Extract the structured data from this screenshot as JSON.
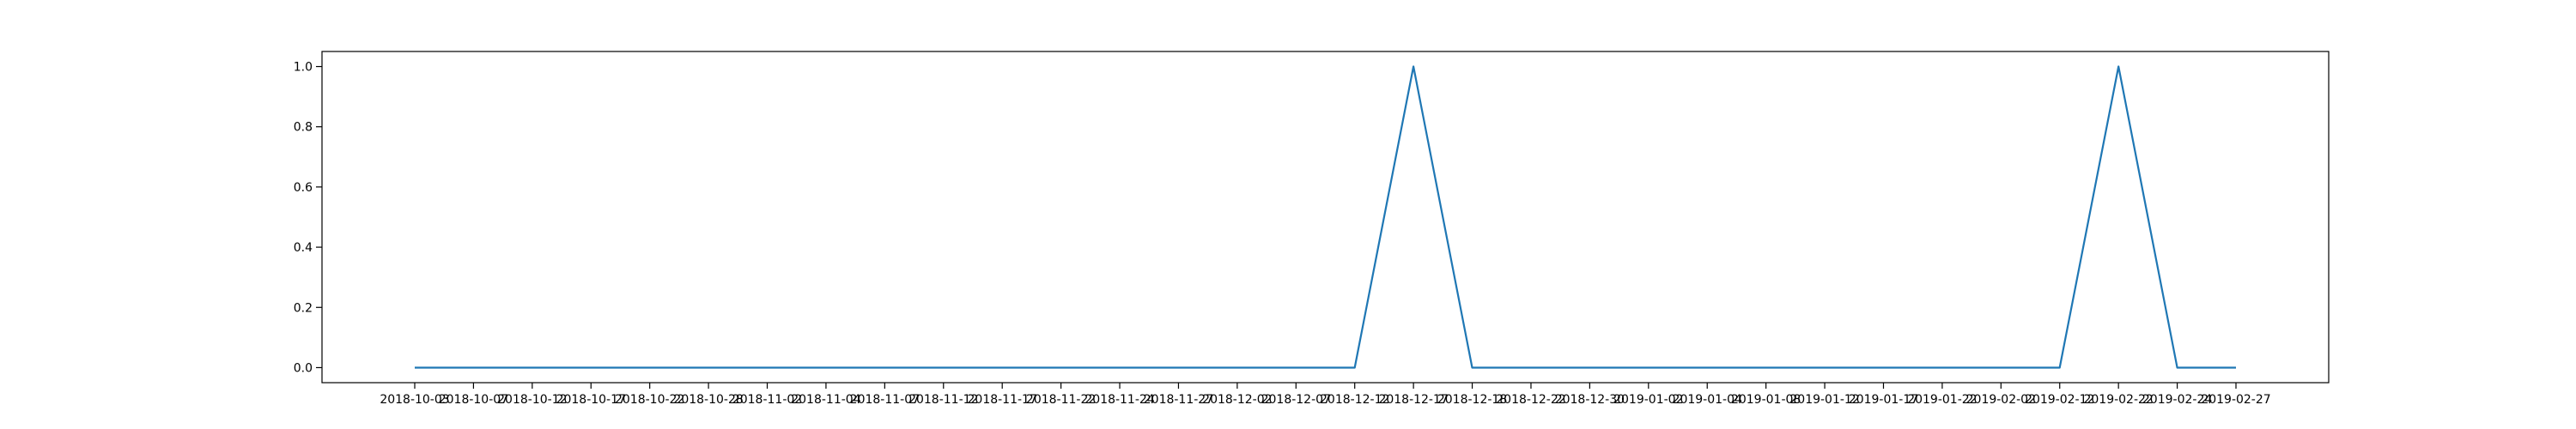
{
  "chart_data": {
    "type": "line",
    "title": "",
    "xlabel": "",
    "ylabel": "",
    "grid": false,
    "x": [
      "2018-10-03",
      "2018-10-07",
      "2018-10-12",
      "2018-10-17",
      "2018-10-22",
      "2018-10-28",
      "2018-11-02",
      "2018-11-04",
      "2018-11-07",
      "2018-11-12",
      "2018-11-17",
      "2018-11-22",
      "2018-11-24",
      "2018-11-27",
      "2018-12-02",
      "2018-12-07",
      "2018-12-12",
      "2018-12-17",
      "2018-12-18",
      "2018-12-22",
      "2018-12-30",
      "2019-01-02",
      "2019-01-04",
      "2019-01-08",
      "2019-01-12",
      "2019-01-17",
      "2019-01-22",
      "2019-02-02",
      "2019-02-12",
      "2019-02-22",
      "2019-02-24",
      "2019-02-27"
    ],
    "x_tick_labels": [
      "2018-10-03",
      "2018-10-07",
      "2018-10-12",
      "2018-10-17",
      "2018-10-22",
      "2018-10-28",
      "2018-11-02",
      "2018-11-04",
      "2018-11-07",
      "2018-11-12",
      "2018-11-17",
      "2018-11-22",
      "2018-11-24",
      "2018-11-27",
      "2018-12-02",
      "2018-12-07",
      "2018-12-12",
      "2018-12-17",
      "2018-12-18",
      "2018-12-22",
      "2018-12-30",
      "2019-01-02",
      "2019-01-04",
      "2019-01-08",
      "2019-01-12",
      "2019-01-17",
      "2019-01-22",
      "2019-02-02",
      "2019-02-12",
      "2019-02-22",
      "2019-02-24",
      "2019-02-27"
    ],
    "series": [
      {
        "color": "#1f77b4",
        "values": [
          0,
          0,
          0,
          0,
          0,
          0,
          0,
          0,
          0,
          0,
          0,
          0,
          0,
          0,
          0,
          0,
          0,
          1,
          0,
          0,
          0,
          0,
          0,
          0,
          0,
          0,
          0,
          0,
          0,
          1,
          0,
          0
        ]
      }
    ],
    "ylim": [
      -0.05,
      1.05
    ],
    "y_ticks": [
      0.0,
      0.2,
      0.4,
      0.6,
      0.8,
      1.0
    ],
    "y_tick_labels": [
      "0.0",
      "0.2",
      "0.4",
      "0.6",
      "0.8",
      "1.0"
    ]
  }
}
